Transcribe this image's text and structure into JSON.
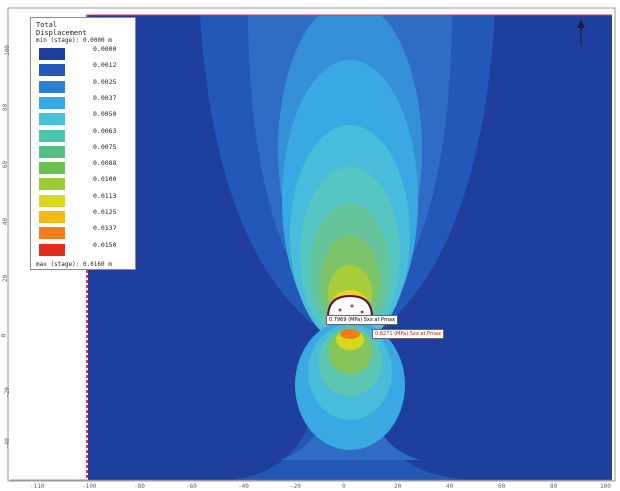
{
  "legend": {
    "title_line1": "Total",
    "title_line2": "Displacement",
    "min_label": "min (stage): 0.0000 m",
    "max_label": "max (stage): 0.0160 m",
    "scale": [
      {
        "value": "0.0000",
        "color": "#1f3f9e"
      },
      {
        "value": "0.0012",
        "color": "#2458b8"
      },
      {
        "value": "0.0025",
        "color": "#2f7fd0"
      },
      {
        "value": "0.0037",
        "color": "#3aa8e2"
      },
      {
        "value": "0.0050",
        "color": "#48c0d8"
      },
      {
        "value": "0.0063",
        "color": "#4cc4b0"
      },
      {
        "value": "0.0075",
        "color": "#53bf84"
      },
      {
        "value": "0.0088",
        "color": "#6cc052"
      },
      {
        "value": "0.0100",
        "color": "#9bcc36"
      },
      {
        "value": "0.0113",
        "color": "#d6d81e"
      },
      {
        "value": "0.0125",
        "color": "#f5b814"
      },
      {
        "value": "0.0137",
        "color": "#f27c16"
      },
      {
        "value": "0.0150",
        "color": "#e32b1b"
      }
    ]
  },
  "x_ticks": [
    "-110",
    "-100",
    "-80",
    "-60",
    "-40",
    "-20",
    "0",
    "20",
    "40",
    "60",
    "80",
    "100"
  ],
  "y_ticks": [
    "100",
    "80",
    "60",
    "40",
    "20",
    "0",
    "-20",
    "-40"
  ],
  "annotations": {
    "upper": "0.7969 (MPa) Sxx at Pmax",
    "lower": "0.8271 (MPa) Sxx at Pmax"
  },
  "colors": {
    "background": "#1f3f9e",
    "boundary": "#e0325a"
  }
}
